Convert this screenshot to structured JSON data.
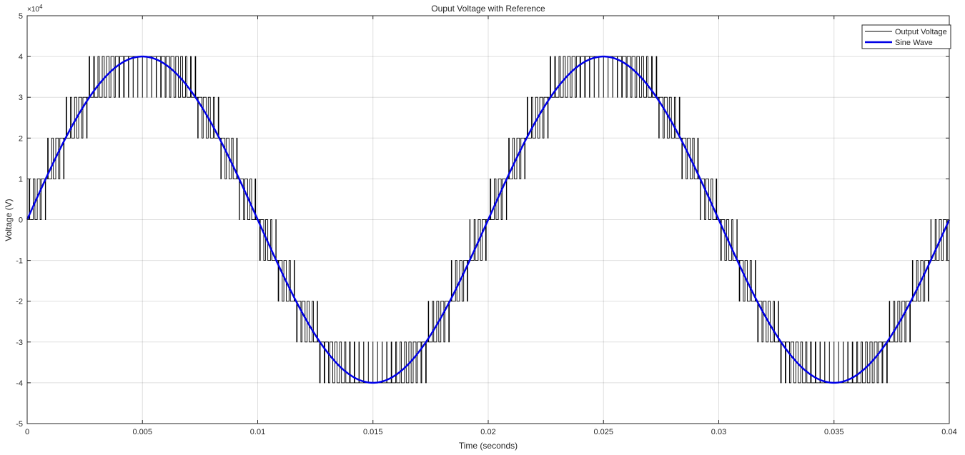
{
  "chart_data": {
    "type": "line",
    "title": "Ouput Voltage with Reference",
    "xlabel": "Time (seconds)",
    "ylabel": "Voltage (V)",
    "xlim": [
      0,
      0.04
    ],
    "ylim": [
      -5,
      5
    ],
    "y_exponent_label": "×10",
    "y_exponent_power": "4",
    "x_ticks": [
      0,
      0.005,
      0.01,
      0.015,
      0.02,
      0.025,
      0.03,
      0.035,
      0.04
    ],
    "x_tick_labels": [
      "0",
      "0.005",
      "0.01",
      "0.015",
      "0.02",
      "0.025",
      "0.03",
      "0.035",
      "0.04"
    ],
    "y_ticks": [
      -5,
      -4,
      -3,
      -2,
      -1,
      0,
      1,
      2,
      3,
      4,
      5
    ],
    "y_tick_labels": [
      "-5",
      "-4",
      "-3",
      "-2",
      "-1",
      "0",
      "1",
      "2",
      "3",
      "4",
      "5"
    ],
    "grid": true,
    "legend_position": "top-right",
    "series": [
      {
        "name": "Output Voltage",
        "color": "#000000",
        "kind": "multilevel-pwm",
        "levels": [
          -4,
          -3,
          -2,
          -1,
          0,
          1,
          2,
          3,
          4
        ],
        "envelope_amplitude": 4,
        "frequency_hz": 50,
        "carrier_frequency_hz": 5000
      },
      {
        "name": "Sine Wave",
        "color": "#0000e6",
        "kind": "sine",
        "amplitude": 4,
        "frequency_hz": 50
      }
    ]
  }
}
